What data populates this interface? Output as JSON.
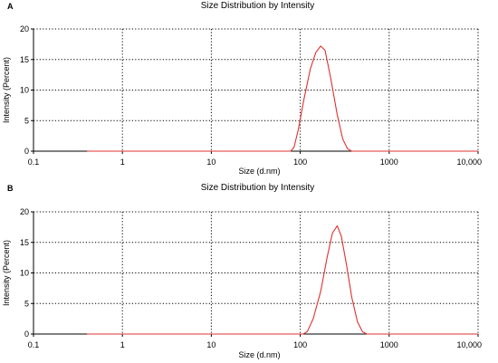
{
  "chart_data": [
    {
      "panel": "A",
      "type": "line",
      "title": "Size Distribution by Intensity",
      "xlabel": "Size (d.nm)",
      "ylabel": "Intensity (Percent)",
      "xscale": "log",
      "xlim": [
        0.1,
        10000
      ],
      "ylim": [
        0,
        20
      ],
      "x_ticks": [
        0.1,
        1,
        10,
        100,
        1000,
        10000
      ],
      "x_tick_labels": [
        "0.1",
        "1",
        "10",
        "100",
        "1000",
        "10,000"
      ],
      "y_ticks": [
        0,
        5,
        10,
        15,
        20
      ],
      "y_tick_labels": [
        "0",
        "5",
        "10",
        "15",
        "20"
      ],
      "grid": true,
      "line_color": "#e03030",
      "series": [
        {
          "x": [
            0.4,
            1,
            10,
            50,
            70,
            78,
            85,
            95,
            110,
            130,
            150,
            170,
            190,
            220,
            260,
            300,
            340,
            380,
            450,
            1000,
            10000
          ],
          "y": [
            0,
            0,
            0,
            0,
            0,
            0,
            0.6,
            3.5,
            8.5,
            13.5,
            16.2,
            17.2,
            16.5,
            12.0,
            6.0,
            2.0,
            0.4,
            0,
            0,
            0,
            0
          ]
        }
      ]
    },
    {
      "panel": "B",
      "type": "line",
      "title": "Size Distribution by Intensity",
      "xlabel": "Size (d.nm)",
      "ylabel": "Intensity (Percent)",
      "xscale": "log",
      "xlim": [
        0.1,
        10000
      ],
      "ylim": [
        0,
        20
      ],
      "x_ticks": [
        0.1,
        1,
        10,
        100,
        1000,
        10000
      ],
      "x_tick_labels": [
        "0.1",
        "1",
        "10",
        "100",
        "1000",
        "10,000"
      ],
      "y_ticks": [
        0,
        5,
        10,
        15,
        20
      ],
      "y_tick_labels": [
        "0",
        "5",
        "10",
        "15",
        "20"
      ],
      "grid": true,
      "line_color": "#e03030",
      "series": [
        {
          "x": [
            0.4,
            1,
            10,
            60,
            95,
            108,
            120,
            140,
            170,
            200,
            230,
            260,
            290,
            330,
            380,
            440,
            500,
            560,
            650,
            1000,
            10000
          ],
          "y": [
            0,
            0,
            0,
            0,
            0,
            0,
            0.4,
            2.5,
            7.0,
            12.5,
            16.5,
            17.7,
            16.0,
            11.5,
            6.0,
            2.0,
            0.4,
            0,
            0,
            0,
            0
          ]
        }
      ]
    }
  ]
}
